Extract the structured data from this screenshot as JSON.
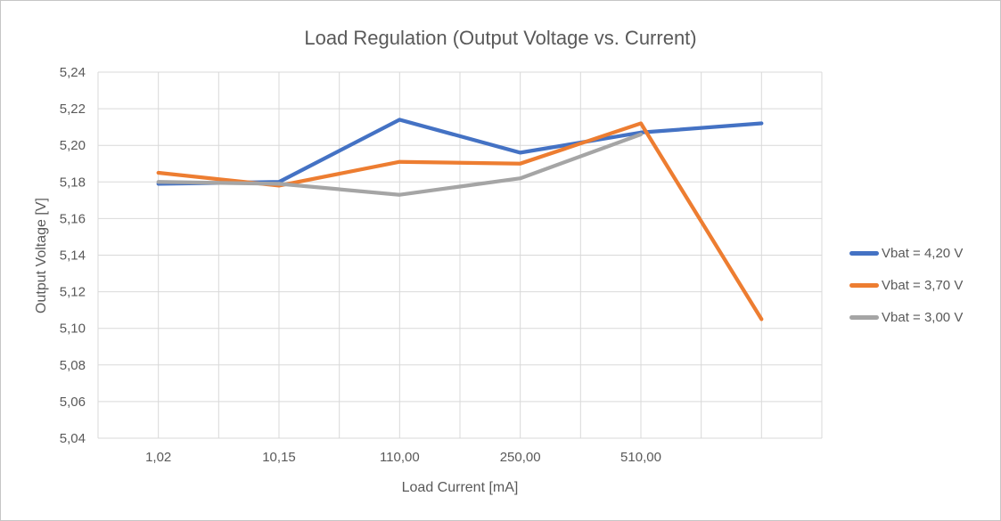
{
  "figure": {
    "background_color": "#ffffff",
    "border_color": "#c6c6c6",
    "text_color": "#595959"
  },
  "chart_data": {
    "type": "line",
    "title": "Load Regulation (Output Voltage vs. Current)",
    "xlabel": "Load Current [mA]",
    "ylabel": "Output Voltage [V]",
    "categories": [
      "1,02",
      "10,15",
      "110,00",
      "250,00",
      "510,00",
      ""
    ],
    "y_axis": {
      "min": 5.04,
      "max": 5.24,
      "tick_step": 0.02,
      "tick_values": [
        5.04,
        5.06,
        5.08,
        5.1,
        5.12,
        5.14,
        5.16,
        5.18,
        5.2,
        5.22,
        5.24
      ],
      "tick_labels": [
        "5,04",
        "5,06",
        "5,08",
        "5,10",
        "5,12",
        "5,14",
        "5,16",
        "5,18",
        "5,20",
        "5,22",
        "5,24"
      ]
    },
    "series": [
      {
        "name": "Vbat = 4,20 V",
        "color": "#4472C4",
        "values": [
          5.179,
          5.18,
          5.214,
          5.196,
          5.207,
          5.212
        ]
      },
      {
        "name": "Vbat = 3,70 V",
        "color": "#ED7D31",
        "values": [
          5.185,
          5.178,
          5.191,
          5.19,
          5.212,
          5.105
        ]
      },
      {
        "name": "Vbat = 3,00 V",
        "color": "#A5A5A5",
        "values": [
          5.18,
          5.179,
          5.173,
          5.182,
          5.206,
          null
        ]
      }
    ],
    "legend": {
      "position": "right",
      "entries": [
        "Vbat = 4,20 V",
        "Vbat = 3,70 V",
        "Vbat = 3,00 V"
      ]
    },
    "grid": {
      "horizontal": true,
      "vertical": true,
      "vertical_lines_per_category": 2,
      "color": "#D9D9D9"
    },
    "text_color": "#595959"
  }
}
